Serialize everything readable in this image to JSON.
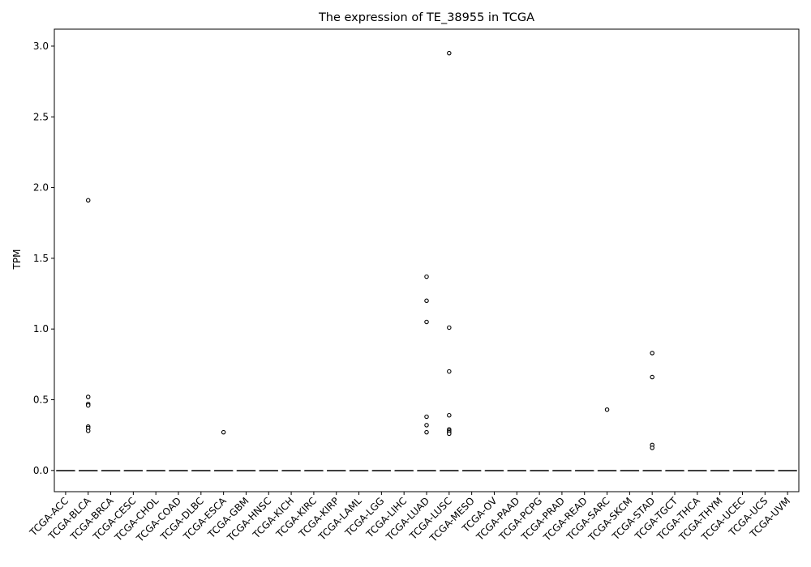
{
  "chart_data": {
    "type": "box",
    "title": "The expression of TE_38955 in TCGA",
    "xlabel": "",
    "ylabel": "TPM",
    "ylim": [
      -0.15,
      3.12
    ],
    "yticks": [
      0.0,
      0.5,
      1.0,
      1.5,
      2.0,
      2.5,
      3.0
    ],
    "ytick_labels": [
      "0.0",
      "0.5",
      "1.0",
      "1.5",
      "2.0",
      "2.5",
      "3.0"
    ],
    "grid": false,
    "categories": [
      "TCGA-ACC",
      "TCGA-BLCA",
      "TCGA-BRCA",
      "TCGA-CESC",
      "TCGA-CHOL",
      "TCGA-COAD",
      "TCGA-DLBC",
      "TCGA-ESCA",
      "TCGA-GBM",
      "TCGA-HNSC",
      "TCGA-KICH",
      "TCGA-KIRC",
      "TCGA-KIRP",
      "TCGA-LAML",
      "TCGA-LGG",
      "TCGA-LIHC",
      "TCGA-LUAD",
      "TCGA-LUSC",
      "TCGA-MESO",
      "TCGA-OV",
      "TCGA-PAAD",
      "TCGA-PCPG",
      "TCGA-PRAD",
      "TCGA-READ",
      "TCGA-SARC",
      "TCGA-SKCM",
      "TCGA-STAD",
      "TCGA-TGCT",
      "TCGA-THCA",
      "TCGA-THYM",
      "TCGA-UCEC",
      "TCGA-UCS",
      "TCGA-UVM"
    ],
    "box_stats": {
      "q1": 0.0,
      "median": 0.0,
      "q3": 0.0,
      "whisker_low": 0.0,
      "whisker_high": 0.0
    },
    "outliers": {
      "TCGA-BLCA": [
        1.91,
        0.52,
        0.47,
        0.46,
        0.31,
        0.3,
        0.28
      ],
      "TCGA-ESCA": [
        0.27
      ],
      "TCGA-LUAD": [
        1.37,
        1.2,
        1.05,
        0.38,
        0.32,
        0.27
      ],
      "TCGA-LUSC": [
        2.95,
        1.01,
        0.7,
        0.39,
        0.29,
        0.28,
        0.27,
        0.26
      ],
      "TCGA-SARC": [
        0.43
      ],
      "TCGA-STAD": [
        0.83,
        0.66,
        0.18,
        0.16
      ]
    },
    "colors": {
      "axis": "#000000",
      "box_line": "#3f3f3f",
      "marker_edge": "#000000",
      "marker_fill": "#ffffff"
    }
  }
}
